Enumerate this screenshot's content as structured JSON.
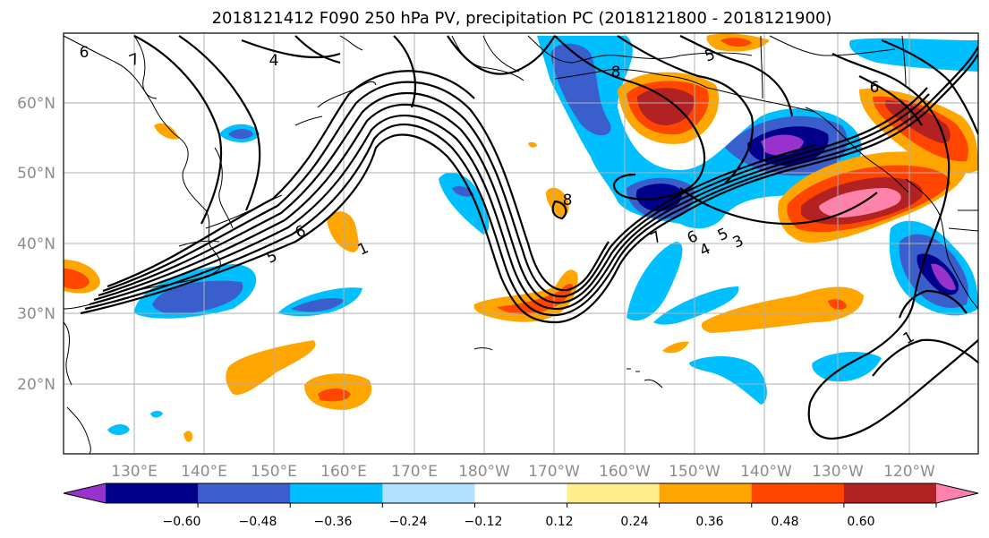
{
  "title": "2018121412 F090 250 hPa PV, precipitation PC (2018121800 - 2018121900)",
  "map": {
    "lon_labels": [
      "130°E",
      "140°E",
      "150°E",
      "160°E",
      "170°E",
      "180°W",
      "170°W",
      "160°W",
      "150°W",
      "140°W",
      "130°W",
      "120°W"
    ],
    "lat_labels": [
      "60°N",
      "50°N",
      "40°N",
      "30°N",
      "20°N"
    ],
    "contour_labels": [
      "4",
      "7",
      "6",
      "5",
      "6",
      "1",
      "8",
      "8",
      "7",
      "6",
      "5",
      "4",
      "3",
      "1",
      "6",
      "5"
    ]
  },
  "colorbar": {
    "colors": [
      "#9932cc",
      "#00008b",
      "#3a5fcd",
      "#00bfff",
      "#b0e2ff",
      "#ffffff",
      "#ffec8b",
      "#ffa500",
      "#ff4500",
      "#b22222",
      "#ff82ab"
    ],
    "tick_labels": [
      "−0.60",
      "−0.48",
      "−0.36",
      "−0.24",
      "−0.12",
      "0.12",
      "0.24",
      "0.36",
      "0.48",
      "0.60"
    ]
  }
}
